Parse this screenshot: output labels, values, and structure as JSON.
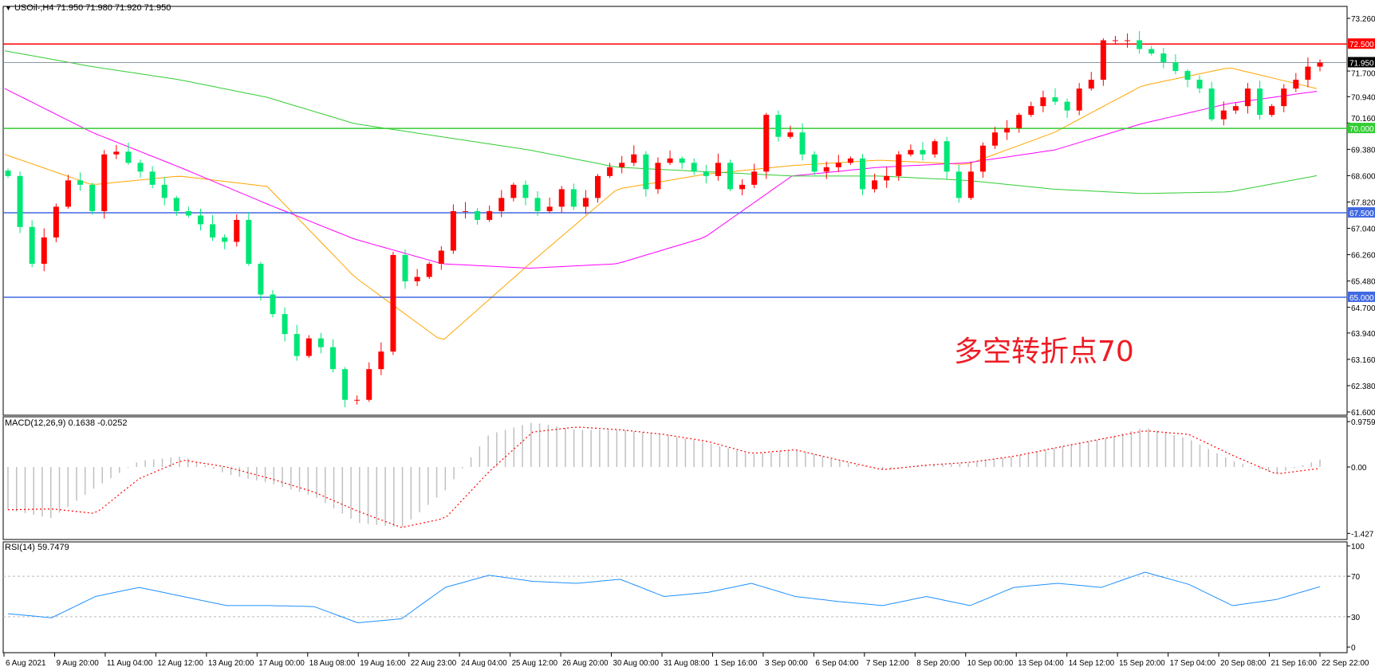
{
  "header": {
    "menu_icon": "triangle-down-icon",
    "symbol": "USOil-,H4",
    "ohlc": "71.950 71.980 71.920 71.950"
  },
  "chart_data": [
    {
      "type": "candlestick",
      "symbol": "USOil-",
      "timeframe": "H4",
      "ylim": [
        61.6,
        73.26
      ],
      "price_ticks": [
        "73.260",
        "71.700",
        "70.940",
        "70.160",
        "69.380",
        "68.600",
        "67.820",
        "67.040",
        "66.260",
        "65.480",
        "64.700",
        "63.940",
        "63.160",
        "62.380",
        "61.600"
      ],
      "time_ticks": [
        "6 Aug 2021",
        "9 Aug 20:00",
        "11 Aug 04:00",
        "12 Aug 12:00",
        "13 Aug 20:00",
        "17 Aug 00:00",
        "18 Aug 08:00",
        "19 Aug 16:00",
        "22 Aug 23:00",
        "24 Aug 04:00",
        "25 Aug 12:00",
        "26 Aug 20:00",
        "30 Aug 00:00",
        "31 Aug 08:00",
        "1 Sep 16:00",
        "3 Sep 00:00",
        "6 Sep 04:00",
        "7 Sep 12:00",
        "8 Sep 20:00",
        "10 Sep 00:00",
        "13 Sep 04:00",
        "14 Sep 12:00",
        "15 Sep 20:00",
        "17 Sep 04:00",
        "20 Sep 08:00",
        "21 Sep 16:00",
        "22 Sep 22:00"
      ],
      "first_open": 68.75,
      "closes": [
        68.59,
        67.08,
        65.99,
        66.77,
        67.68,
        68.46,
        68.33,
        67.55,
        69.23,
        69.31,
        68.98,
        68.72,
        68.33,
        67.94,
        67.55,
        67.42,
        67.16,
        66.77,
        66.64,
        67.29,
        65.99,
        65.08,
        64.5,
        63.91,
        63.26,
        63.78,
        63.52,
        62.87,
        61.96,
        61.96,
        62.87,
        63.39,
        66.25,
        65.47,
        65.6,
        65.99,
        66.38,
        67.55,
        67.55,
        67.29,
        67.55,
        67.94,
        68.33,
        67.94,
        67.55,
        67.68,
        68.2,
        67.68,
        67.94,
        68.59,
        68.85,
        68.98,
        69.23,
        68.2,
        68.98,
        69.11,
        68.98,
        68.72,
        68.59,
        68.98,
        68.2,
        68.33,
        68.72,
        70.4,
        69.75,
        69.88,
        69.23,
        68.72,
        68.85,
        68.98,
        69.11,
        68.2,
        68.46,
        68.59,
        69.23,
        69.36,
        69.23,
        69.62,
        68.72,
        67.94,
        68.72,
        69.49,
        69.88,
        70.01,
        70.4,
        70.66,
        70.92,
        70.79,
        70.53,
        71.18,
        71.44,
        72.61,
        72.61,
        72.61,
        72.35,
        72.22,
        71.96,
        71.7,
        71.44,
        71.18,
        70.27,
        70.53,
        70.66,
        71.18,
        70.4,
        70.66,
        71.18,
        71.44,
        71.83,
        71.95
      ],
      "bull_color": "#ff0000",
      "bear_color": "#00e676",
      "moving_averages": [
        {
          "color": "#ffa500",
          "values": [
            69.23,
            68.33,
            68.59,
            68.28,
            65.6,
            63.7,
            65.99,
            68.2,
            68.64,
            68.9,
            69.06,
            68.93,
            69.88,
            71.26,
            71.8,
            71.18
          ]
        },
        {
          "color": "#ff00ff",
          "values": [
            71.18,
            69.88,
            68.85,
            67.76,
            66.72,
            65.99,
            65.86,
            65.99,
            66.77,
            68.59,
            68.85,
            68.98,
            69.36,
            70.14,
            70.74,
            71.1
          ]
        },
        {
          "color": "#32cd32",
          "values": [
            72.3,
            71.83,
            71.44,
            70.92,
            70.14,
            69.75,
            69.36,
            68.85,
            68.72,
            68.59,
            68.59,
            68.46,
            68.2,
            68.07,
            68.12,
            68.6
          ]
        }
      ],
      "levels": [
        {
          "price": 72.5,
          "label": "72.500",
          "color": "#ff0000"
        },
        {
          "price": 70.0,
          "label": "70.000",
          "color": "#32cd32"
        },
        {
          "price": 67.5,
          "label": "67.500",
          "color": "#4169e1"
        },
        {
          "price": 65.0,
          "label": "65.000",
          "color": "#4169e1"
        }
      ],
      "current_price": {
        "value": 71.95,
        "label": "71.950",
        "color": "#000000"
      },
      "annotation": {
        "text": "多空转折点70",
        "color": "#ee1c25"
      }
    },
    {
      "type": "bar",
      "title": "MACD(12,26,9) 0.1638 -0.0252",
      "ylim": [
        -1.427,
        0.9759
      ],
      "ticks": [
        "0.9759",
        "0.00",
        "-1.427"
      ],
      "histogram": [
        -0.92,
        -1.1,
        -0.44,
        0.13,
        0.23,
        -0.15,
        -0.35,
        -0.63,
        -1.2,
        -1.3,
        -0.5,
        0.7,
        0.96,
        0.8,
        0.8,
        0.7,
        0.52,
        0.27,
        0.38,
        0.13,
        -0.06,
        0.04,
        0.08,
        0.23,
        0.42,
        0.6,
        0.85,
        0.6,
        0.13,
        -0.15,
        0.16
      ],
      "signal": [
        -0.92,
        -0.9,
        -1.0,
        -0.25,
        0.15,
        0.0,
        -0.25,
        -0.54,
        -0.95,
        -1.3,
        -1.1,
        -0.1,
        0.75,
        0.86,
        0.8,
        0.7,
        0.55,
        0.29,
        0.37,
        0.15,
        -0.06,
        0.04,
        0.1,
        0.23,
        0.42,
        0.6,
        0.78,
        0.7,
        0.25,
        -0.15,
        -0.03
      ],
      "histogram_color": "#c0c0c0",
      "signal_color": "#ff0000"
    },
    {
      "type": "line",
      "title": "RSI(14) 59.7479",
      "ylim": [
        0,
        100
      ],
      "ticks": [
        "100",
        "70",
        "30",
        "0"
      ],
      "levels": [
        70,
        30
      ],
      "values": [
        33,
        29,
        50,
        59,
        50,
        41,
        41,
        40,
        24,
        28,
        59,
        71,
        65,
        63,
        67,
        50,
        54,
        63,
        50,
        45,
        41,
        50,
        41,
        59,
        63,
        59,
        74,
        62,
        41,
        47,
        59.7
      ],
      "color": "#1e90ff"
    }
  ]
}
